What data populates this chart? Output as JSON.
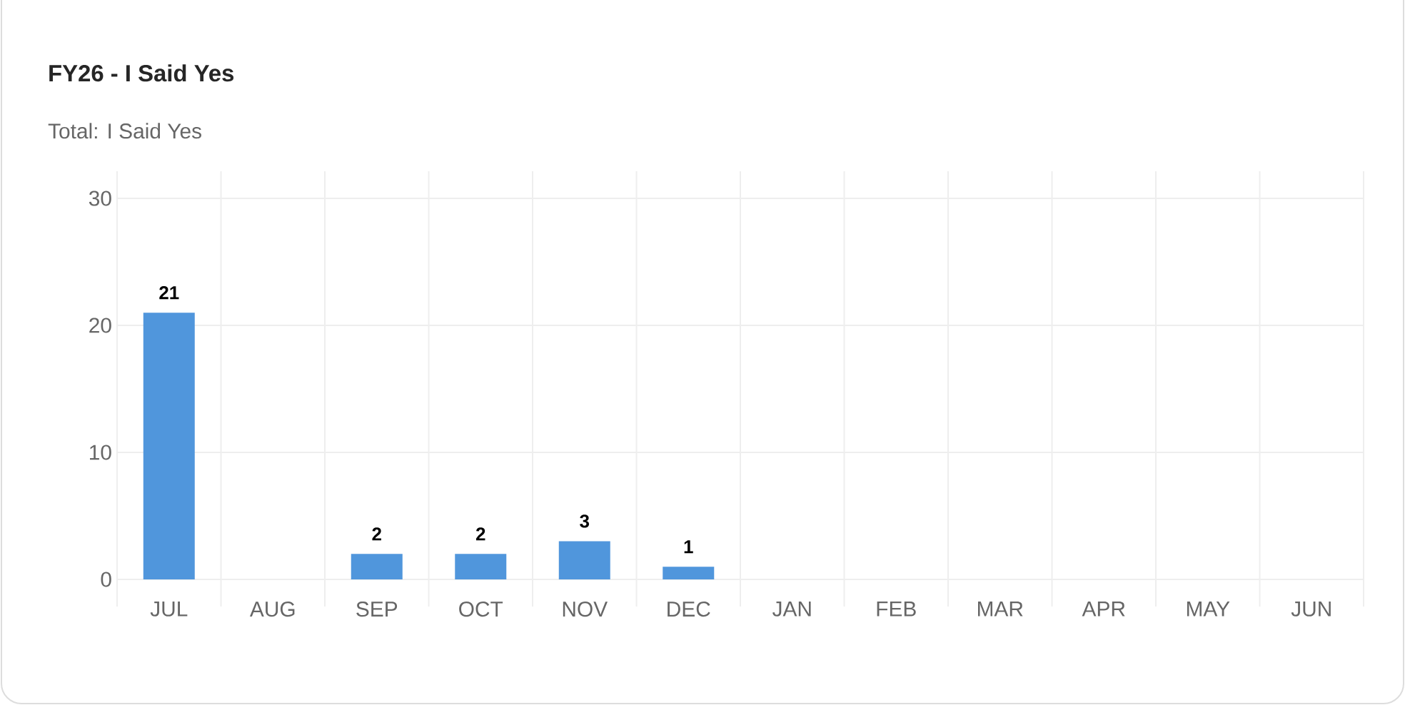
{
  "chart_data": {
    "type": "bar",
    "title": "FY26 - I Said Yes",
    "subtitle": "Total: I Said Yes",
    "categories": [
      "JUL",
      "AUG",
      "SEP",
      "OCT",
      "NOV",
      "DEC",
      "JAN",
      "FEB",
      "MAR",
      "APR",
      "MAY",
      "JUN"
    ],
    "values": [
      21,
      null,
      2,
      2,
      3,
      1,
      null,
      null,
      null,
      null,
      null,
      null
    ],
    "color": "#5096dc",
    "ylim": [
      0,
      30
    ],
    "yticks": [
      0,
      10,
      20,
      30
    ],
    "grid": true,
    "data_labels": true
  }
}
